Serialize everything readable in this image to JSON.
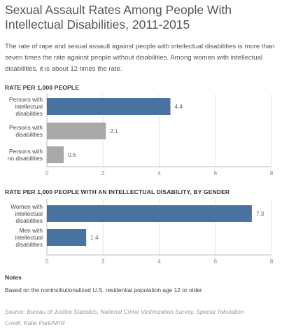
{
  "header": {
    "title": "Sexual Assault Rates Among People With Intellectual Disabilities, 2011-2015",
    "subtitle": "The rate of rape and sexual assault against people with intellectual disabilities is more than seven times the rate against people without disabilities. Among women with intellectual disabilities, it is about 12 times the rate."
  },
  "chart_data": [
    {
      "type": "bar",
      "orientation": "horizontal",
      "title": "RATE PER 1,000 PEOPLE",
      "categories": [
        [
          "Persons with",
          "intellectual",
          "disabilities"
        ],
        [
          "Persons with",
          "disabilities"
        ],
        [
          "Persons with",
          "no disabilities"
        ]
      ],
      "values": [
        4.4,
        2.1,
        0.6
      ],
      "value_labels": [
        "4.4",
        "2.1",
        "0.6"
      ],
      "colors": [
        "#4a72a0",
        "#a9a9a9",
        "#a9a9a9"
      ],
      "xlim": [
        0,
        8
      ],
      "xticks": [
        0,
        2,
        4,
        6,
        8
      ],
      "grid": true
    },
    {
      "type": "bar",
      "orientation": "horizontal",
      "title": "RATE PER 1,000 PEOPLE WITH AN INTELLECTUAL DISABILITY, BY GENDER",
      "categories": [
        [
          "Women with",
          "intellectual",
          "disabilities"
        ],
        [
          "Men with",
          "intellectual",
          "disabilities"
        ]
      ],
      "values": [
        7.3,
        1.4
      ],
      "value_labels": [
        "7.3",
        "1.4"
      ],
      "colors": [
        "#4a72a0",
        "#4a72a0"
      ],
      "xlim": [
        0,
        8
      ],
      "xticks": [
        0,
        2,
        4,
        6,
        8
      ],
      "grid": true
    }
  ],
  "notes": {
    "heading": "Notes",
    "text": "Based on the noninstitutionalized U.S. residential population age 12 or older"
  },
  "footer": {
    "source": "Source: Bureau of Justice Statistics, National Crime Victimization Survey, Special Tabulation",
    "credit": "Credit: Katie Park/NPR"
  }
}
